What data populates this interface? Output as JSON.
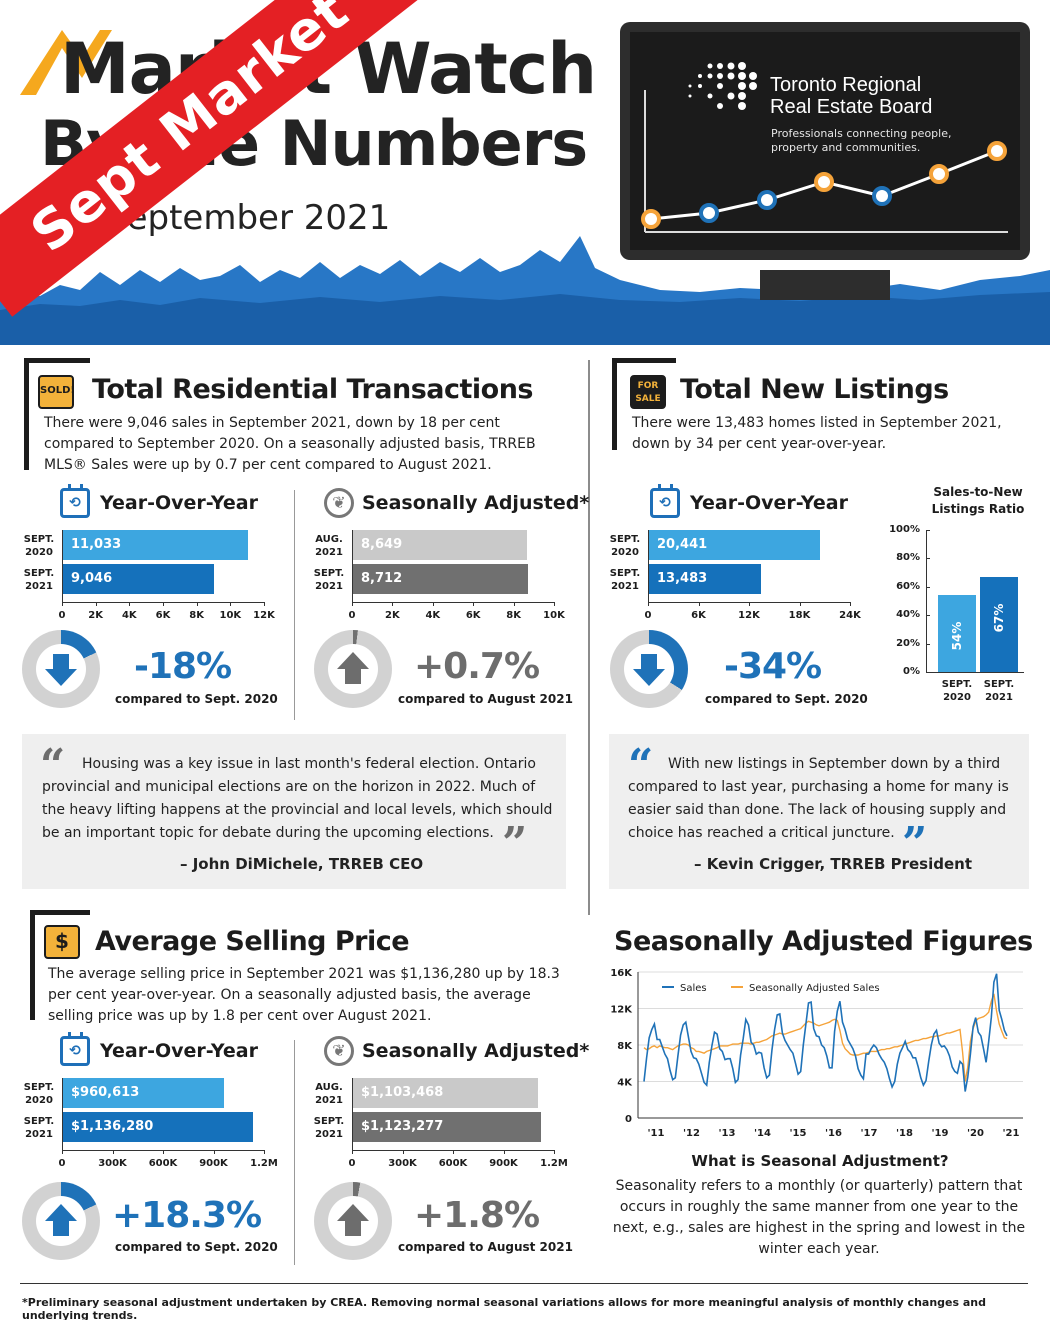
{
  "header": {
    "title_line1": "Market Watch",
    "title_line2": "By the Numbers",
    "date": "September 2021",
    "banner": "Sept Market",
    "board_name_line1": "Toronto Regional",
    "board_name_line2": "Real Estate Board",
    "board_tagline_line1": "Professionals connecting people,",
    "board_tagline_line2": "property and communities."
  },
  "transactions": {
    "icon_text": "SOLD!",
    "title": "Total Residential Transactions",
    "text": "There were 9,046 sales in September 2021, down by 18 per cent compared to September 2020. On a seasonally adjusted basis, TRREB MLS® Sales were up by 0.7 per cent compared to August 2021.",
    "yoy": {
      "heading": "Year-Over-Year",
      "rows": [
        {
          "label1": "SEPT.",
          "label2": "2020",
          "value": 11033,
          "text": "11,033"
        },
        {
          "label1": "SEPT.",
          "label2": "2021",
          "value": 9046,
          "text": "9,046"
        }
      ],
      "ticks": [
        "0",
        "2K",
        "4K",
        "6K",
        "8K",
        "10K",
        "12K"
      ],
      "max": 12000,
      "change": "-18%",
      "compare": "compared to Sept. 2020"
    },
    "sa": {
      "heading": "Seasonally Adjusted*",
      "rows": [
        {
          "label1": "AUG.",
          "label2": "2021",
          "value": 8649,
          "text": "8,649"
        },
        {
          "label1": "SEPT.",
          "label2": "2021",
          "value": 8712,
          "text": "8,712"
        }
      ],
      "ticks": [
        "0",
        "2K",
        "4K",
        "6K",
        "8K",
        "10K"
      ],
      "max": 10000,
      "change": "+0.7%",
      "compare": "compared to August 2021"
    },
    "quote": "Housing was a key issue in last month's federal election. Ontario provincial and municipal elections are on the horizon in 2022. Much of the heavy lifting happens at the provincial and local levels, which should be an important topic for debate during the upcoming elections.",
    "quote_author": "– John DiMichele, TRREB CEO"
  },
  "listings": {
    "icon_text_1": "FOR",
    "icon_text_2": "SALE",
    "title": "Total New Listings",
    "text": "There were 13,483 homes listed in September 2021, down by 34 per cent year-over-year.",
    "yoy": {
      "heading": "Year-Over-Year",
      "rows": [
        {
          "label1": "SEPT.",
          "label2": "2020",
          "value": 20441,
          "text": "20,441"
        },
        {
          "label1": "SEPT.",
          "label2": "2021",
          "value": 13483,
          "text": "13,483"
        }
      ],
      "ticks": [
        "0",
        "6K",
        "12K",
        "18K",
        "24K"
      ],
      "max": 24000,
      "change": "-34%",
      "compare": "compared to Sept. 2020"
    },
    "ratio": {
      "title_line1": "Sales-to-New",
      "title_line2": "Listings Ratio",
      "ticks": [
        "100%",
        "80%",
        "60%",
        "40%",
        "20%",
        "0%"
      ],
      "bars": [
        {
          "label1": "SEPT.",
          "label2": "2020",
          "value": 54,
          "text": "54%"
        },
        {
          "label1": "SEPT.",
          "label2": "2021",
          "value": 67,
          "text": "67%"
        }
      ]
    },
    "quote": "With new listings in September down by a third compared to last year, purchasing a home for many is easier said than done. The lack of housing supply and choice has reached a critical juncture.",
    "quote_author": "– Kevin Crigger, TRREB President"
  },
  "price": {
    "icon_text": "$",
    "title": "Average Selling Price",
    "text": "The average selling price in September 2021 was $1,136,280 up by 18.3 per cent year-over-year. On a seasonally adjusted basis, the average selling price was up by 1.8 per cent over August 2021.",
    "yoy": {
      "heading": "Year-Over-Year",
      "rows": [
        {
          "label1": "SEPT.",
          "label2": "2020",
          "value": 960613,
          "text": "$960,613"
        },
        {
          "label1": "SEPT.",
          "label2": "2021",
          "value": 1136280,
          "text": "$1,136,280"
        }
      ],
      "ticks": [
        "0",
        "300K",
        "600K",
        "900K",
        "1.2M"
      ],
      "max": 1200000,
      "change": "+18.3%",
      "compare": "compared to Sept. 2020"
    },
    "sa": {
      "heading": "Seasonally Adjusted*",
      "rows": [
        {
          "label1": "AUG.",
          "label2": "2021",
          "value": 1103468,
          "text": "$1,103,468"
        },
        {
          "label1": "SEPT.",
          "label2": "2021",
          "value": 1123277,
          "text": "$1,123,277"
        }
      ],
      "ticks": [
        "0",
        "300K",
        "600K",
        "900K",
        "1.2M"
      ],
      "max": 1200000,
      "change": "+1.8%",
      "compare": "compared to August 2021"
    }
  },
  "seasonal": {
    "title": "Seasonally Adjusted Figures",
    "legend_sales": "Sales",
    "legend_sa": "Seasonally Adjusted Sales",
    "what_title": "What is Seasonal Adjustment?",
    "what_text": "Seasonality refers to a monthly (or quarterly) pattern that occurs in roughly the same manner from one year to the next, e.g., sales are highest in the spring and lowest in the winter each year."
  },
  "colors": {
    "blue_dark": "#1571bb",
    "blue_light": "#3da6e0",
    "orange": "#f5a33a",
    "red": "#e42024",
    "grey_dark": "#707070",
    "grey_light": "#c9c9c9"
  },
  "chart_data": [
    {
      "type": "bar",
      "title": "Year-Over-Year",
      "categories": [
        "SEPT. 2020",
        "SEPT. 2021"
      ],
      "values": [
        11033,
        9046
      ],
      "xlim": [
        0,
        12000
      ]
    },
    {
      "type": "bar",
      "title": "Seasonally Adjusted*",
      "categories": [
        "AUG. 2021",
        "SEPT. 2021"
      ],
      "values": [
        8649,
        8712
      ],
      "xlim": [
        0,
        10000
      ]
    },
    {
      "type": "bar",
      "title": "Year-Over-Year",
      "categories": [
        "SEPT. 2020",
        "SEPT. 2021"
      ],
      "values": [
        20441,
        13483
      ],
      "xlim": [
        0,
        24000
      ]
    },
    {
      "type": "bar",
      "title": "Sales-to-New Listings Ratio",
      "categories": [
        "SEPT. 2020",
        "SEPT. 2021"
      ],
      "values": [
        54,
        67
      ],
      "ylim": [
        0,
        100
      ]
    },
    {
      "type": "bar",
      "title": "Year-Over-Year",
      "categories": [
        "SEPT. 2020",
        "SEPT. 2021"
      ],
      "values": [
        960613,
        1136280
      ],
      "xlim": [
        0,
        1200000
      ]
    },
    {
      "type": "bar",
      "title": "Seasonally Adjusted*",
      "categories": [
        "AUG. 2021",
        "SEPT. 2021"
      ],
      "values": [
        1103468,
        1123277
      ],
      "xlim": [
        0,
        1200000
      ]
    },
    {
      "type": "line",
      "title": "Seasonally Adjusted Figures",
      "x_tick_labels": [
        "'11",
        "'12",
        "'13",
        "'14",
        "'15",
        "'16",
        "'17",
        "'18",
        "'19",
        "'20",
        "'21"
      ],
      "y_tick_labels": [
        "0",
        "4K",
        "8K",
        "12K",
        "16K"
      ],
      "ylim": [
        0,
        16000
      ],
      "legend": "top-left",
      "series": [
        {
          "name": "Sales",
          "values": [
            4000,
            6600,
            8800,
            9700,
            10300,
            8600,
            8600,
            7800,
            7000,
            6500,
            5200,
            4200,
            4400,
            6800,
            9100,
            10200,
            10500,
            8900,
            7300,
            6600,
            6500,
            5900,
            4900,
            3900,
            3600,
            6100,
            7900,
            9400,
            9200,
            7600,
            7300,
            6400,
            6500,
            6500,
            5400,
            3900,
            4200,
            6900,
            8700,
            10800,
            10200,
            8300,
            8000,
            7000,
            7200,
            7100,
            5500,
            4400,
            4700,
            7500,
            9700,
            11300,
            11400,
            9300,
            8500,
            8000,
            7500,
            7100,
            6000,
            4800,
            5100,
            8000,
            10300,
            12600,
            12700,
            9800,
            9000,
            8900,
            8000,
            7700,
            6800,
            5500,
            5500,
            9500,
            11700,
            12800,
            10500,
            9700,
            8600,
            8100,
            7600,
            6800,
            5400,
            4700,
            4300,
            7000,
            7000,
            7600,
            8000,
            7700,
            7000,
            6500,
            6100,
            5400,
            4300,
            3400,
            4000,
            5900,
            7100,
            7700,
            8400,
            7500,
            7200,
            6600,
            6600,
            5600,
            4400,
            3600,
            4100,
            6200,
            8000,
            9200,
            9600,
            8200,
            7800,
            7900,
            7500,
            6800,
            5600,
            5100,
            4900,
            6200,
            5900,
            2900,
            4500,
            7000,
            10000,
            11000,
            9400,
            9000,
            7600,
            6100,
            8400,
            11000,
            14900,
            15800,
            11800,
            10800,
            9600,
            9000
          ]
        },
        {
          "name": "Seasonally Adjusted Sales",
          "values": [
            7700,
            7500,
            7600,
            7800,
            7900,
            7700,
            7900,
            7800,
            7700,
            7700,
            7600,
            7500,
            7700,
            7900,
            8000,
            8100,
            8100,
            8000,
            7700,
            7600,
            7300,
            7300,
            7200,
            7100,
            7300,
            7400,
            7500,
            7600,
            7700,
            7900,
            7900,
            7900,
            7900,
            8000,
            8100,
            8100,
            8100,
            8200,
            8200,
            8200,
            8200,
            8100,
            8200,
            8300,
            8300,
            8400,
            8500,
            8600,
            8800,
            9000,
            9100,
            9200,
            9300,
            9200,
            9200,
            9300,
            9400,
            9500,
            9600,
            9700,
            9800,
            10100,
            10400,
            10600,
            10500,
            10400,
            10200,
            10100,
            10200,
            10300,
            10400,
            10500,
            10700,
            10800,
            10700,
            9600,
            8200,
            7600,
            7300,
            7000,
            6900,
            6900,
            6900,
            7000,
            7100,
            7100,
            7200,
            7300,
            7300,
            7300,
            7400,
            7500,
            7500,
            7600,
            7600,
            7700,
            7800,
            7800,
            7900,
            8000,
            8100,
            8200,
            8300,
            8400,
            8500,
            8500,
            8600,
            8700,
            8700,
            8800,
            8900,
            8900,
            9000,
            9000,
            9100,
            9200,
            9300,
            9300,
            9400,
            9500,
            9600,
            9700,
            7200,
            4000,
            5600,
            8400,
            9800,
            10600,
            10900,
            11000,
            11100,
            11300,
            11600,
            12800,
            13600,
            11700,
            10300,
            9500,
            8800,
            8700
          ]
        }
      ]
    }
  ]
}
